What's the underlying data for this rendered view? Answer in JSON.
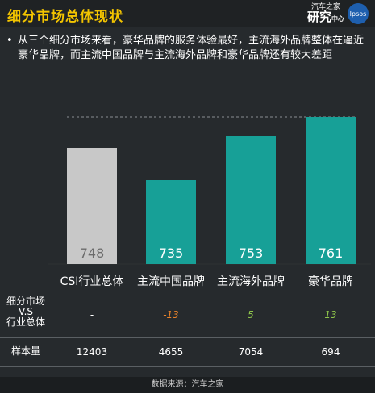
{
  "header": {
    "title": "细分市场总体现状",
    "brand_top": "汽车之家",
    "brand_main": "研究",
    "brand_sub": "中心",
    "partner": "Ipsos"
  },
  "bullet": {
    "symbol": "•",
    "text": "从三个细分市场来看，豪华品牌的服务体验最好，主流海外品牌整体在逼近豪华品牌，而主流中国品牌与主流海外品牌和豪华品牌还有较大差距"
  },
  "chart_data": {
    "type": "bar",
    "categories": [
      "CSI行业总体",
      "主流中国品牌",
      "主流海外品牌",
      "豪华品牌"
    ],
    "values": [
      748,
      735,
      753,
      761
    ],
    "value_labels": [
      "748",
      "735",
      "753",
      "761"
    ],
    "bar_colors": [
      "#c8c8c8",
      "#17a097",
      "#17a097",
      "#17a097"
    ],
    "reference_line": 761,
    "grid": false,
    "legend": "none"
  },
  "table": {
    "rows": [
      {
        "label": "细分市场\nV.S\n行业总体",
        "cells": [
          "-",
          "-13",
          "5",
          "13"
        ],
        "styles": [
          "plain",
          "neg",
          "pos",
          "pos"
        ]
      },
      {
        "label": "样本量",
        "cells": [
          "12403",
          "4655",
          "7054",
          "694"
        ],
        "styles": [
          "plain",
          "plain",
          "plain",
          "plain"
        ]
      }
    ]
  },
  "footer": {
    "source": "数据来源：汽车之家"
  }
}
